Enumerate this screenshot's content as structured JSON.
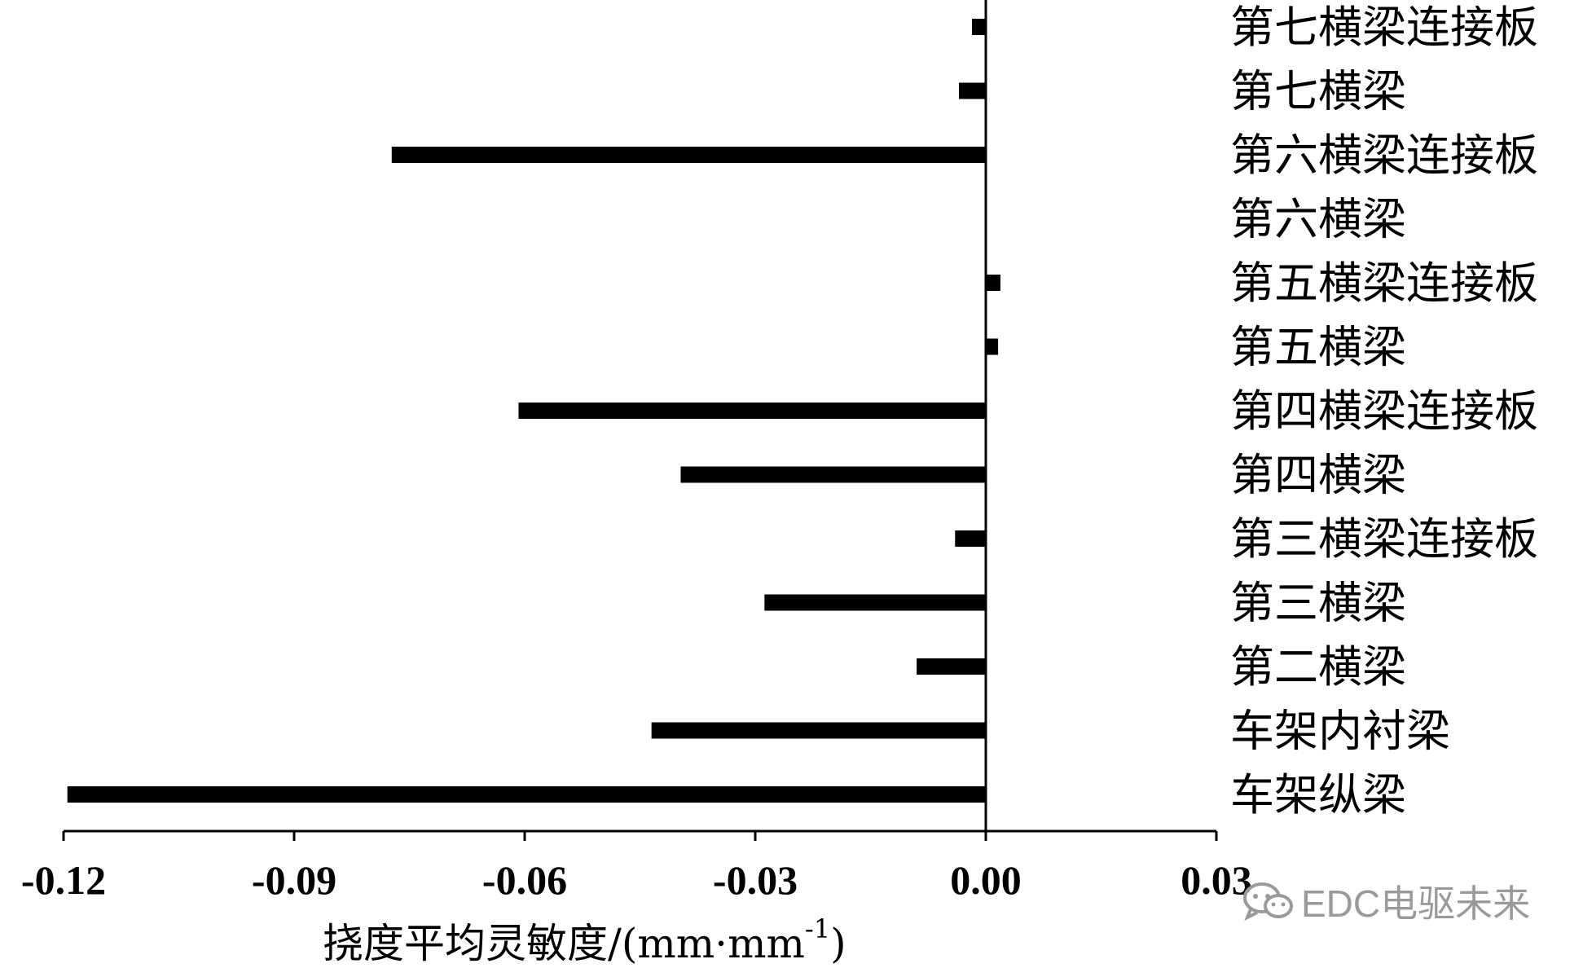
{
  "chart_data": {
    "type": "bar",
    "orientation": "horizontal",
    "categories": [
      "车架纵梁",
      "车架内衬梁",
      "第二横梁",
      "第三横梁",
      "第三横梁连接板",
      "第四横梁",
      "第四横梁连接板",
      "第五横梁",
      "第五横梁连接板",
      "第六横梁",
      "第六横梁连接板",
      "第七横梁",
      "第七横梁连接板"
    ],
    "values": [
      -0.1195,
      -0.0435,
      -0.009,
      -0.0288,
      -0.004,
      -0.0397,
      -0.0608,
      0.0016,
      0.0019,
      0.0,
      -0.0773,
      -0.0035,
      -0.0018
    ],
    "xlim": [
      -0.12,
      0.03
    ],
    "xticks": [
      "-0.12",
      "-0.09",
      "-0.06",
      "-0.03",
      "0.00",
      "0.03"
    ],
    "xticks_values": [
      -0.12,
      -0.09,
      -0.06,
      -0.03,
      0.0,
      0.03
    ],
    "xlabel": "挠度平均灵敏度/(mm·mm",
    "xlabel_sup": "-1",
    "xlabel_end": ")",
    "bar_color": "#000000",
    "legend": "none",
    "grid": false
  },
  "watermark": {
    "text": "EDC电驱未来",
    "icon": "wechat-icon",
    "color": "#9a9a9a"
  }
}
